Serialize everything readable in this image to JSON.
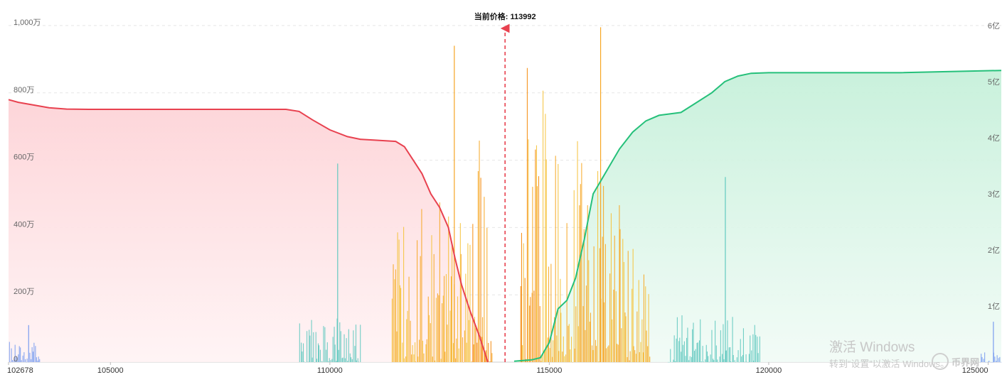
{
  "chart_data": {
    "type": "area",
    "title": "",
    "current_price_label": "当前价格: 113992",
    "current_price": 113992,
    "x_range": [
      102678,
      125300
    ],
    "x_ticks": [
      {
        "value": 102678,
        "label": "102678"
      },
      {
        "value": 105000,
        "label": "105000"
      },
      {
        "value": 110000,
        "label": "110000"
      },
      {
        "value": 115000,
        "label": "115000"
      },
      {
        "value": 120000,
        "label": "120000"
      },
      {
        "value": 125000,
        "label": "125000"
      }
    ],
    "y_left": {
      "range": [
        0,
        10000000
      ],
      "ticks": [
        {
          "value": 0,
          "label": "0"
        },
        {
          "value": 2000000,
          "label": "200万"
        },
        {
          "value": 4000000,
          "label": "400万"
        },
        {
          "value": 6000000,
          "label": "600万"
        },
        {
          "value": 8000000,
          "label": "800万"
        },
        {
          "value": 10000000,
          "label": "1,000万"
        }
      ]
    },
    "y_right": {
      "range": [
        0,
        600000000
      ],
      "ticks": [
        {
          "value": 100000000,
          "label": "1亿"
        },
        {
          "value": 200000000,
          "label": "2亿"
        },
        {
          "value": 300000000,
          "label": "3亿"
        },
        {
          "value": 400000000,
          "label": "4亿"
        },
        {
          "value": 500000000,
          "label": "5亿"
        },
        {
          "value": 600000000,
          "label": "6亿"
        }
      ]
    },
    "grid": true,
    "series": [
      {
        "role": "bid-cumulative",
        "axis": "left",
        "color": "#e8414f",
        "fill": "#fdd6da",
        "points": [
          [
            102678,
            7800000
          ],
          [
            102900,
            7720000
          ],
          [
            103200,
            7650000
          ],
          [
            103600,
            7560000
          ],
          [
            104000,
            7520000
          ],
          [
            104500,
            7510000
          ],
          [
            106000,
            7510000
          ],
          [
            108000,
            7510000
          ],
          [
            109000,
            7510000
          ],
          [
            109300,
            7450000
          ],
          [
            109600,
            7200000
          ],
          [
            110000,
            6900000
          ],
          [
            110400,
            6700000
          ],
          [
            110700,
            6620000
          ],
          [
            111000,
            6600000
          ],
          [
            111500,
            6560000
          ],
          [
            111700,
            6400000
          ],
          [
            111900,
            6000000
          ],
          [
            112100,
            5600000
          ],
          [
            112300,
            5000000
          ],
          [
            112500,
            4600000
          ],
          [
            112700,
            4000000
          ],
          [
            112850,
            3100000
          ],
          [
            113000,
            2300000
          ],
          [
            113200,
            1500000
          ],
          [
            113400,
            800000
          ],
          [
            113600,
            0
          ]
        ]
      },
      {
        "role": "ask-cumulative",
        "axis": "right",
        "color": "#25c07a",
        "fill": "#c8f1dd",
        "points": [
          [
            114200,
            1500000
          ],
          [
            114600,
            4000000
          ],
          [
            114800,
            8000000
          ],
          [
            115000,
            35000000
          ],
          [
            115200,
            95000000
          ],
          [
            115400,
            110000000
          ],
          [
            115600,
            150000000
          ],
          [
            115800,
            220000000
          ],
          [
            116000,
            300000000
          ],
          [
            116300,
            340000000
          ],
          [
            116600,
            380000000
          ],
          [
            116900,
            410000000
          ],
          [
            117200,
            430000000
          ],
          [
            117500,
            440000000
          ],
          [
            118000,
            445000000
          ],
          [
            118300,
            460000000
          ],
          [
            118700,
            480000000
          ],
          [
            119000,
            500000000
          ],
          [
            119300,
            510000000
          ],
          [
            119600,
            515000000
          ],
          [
            120000,
            516000000
          ],
          [
            123000,
            516000000
          ],
          [
            125300,
            520000000
          ]
        ]
      }
    ],
    "bar_groups": [
      {
        "role": "far-bids",
        "color": "#7b9df0",
        "x_range": [
          102680,
          103400
        ],
        "max": 45000000,
        "seed": 11,
        "peak": 1100000,
        "axis": "right"
      },
      {
        "role": "near-bids-teal",
        "color": "#62c9c0",
        "x_range": [
          109300,
          110700
        ],
        "max": 80000000,
        "seed": 23,
        "peak": 5900000,
        "axis": "right"
      },
      {
        "role": "bids-orange",
        "color": "#f6a623",
        "x_range": [
          111400,
          113700
        ],
        "max": 480000000,
        "seed": 37,
        "peak": 9400000,
        "axis": "right"
      },
      {
        "role": "asks-orange",
        "color": "#f6a623",
        "x_range": [
          114300,
          117300
        ],
        "max": 590000000,
        "seed": 53,
        "peak": 9950000,
        "axis": "right"
      },
      {
        "role": "far-asks-teal",
        "color": "#62c9c0",
        "x_range": [
          117700,
          119800
        ],
        "max": 85000000,
        "seed": 71,
        "peak": 5500000,
        "axis": "right"
      },
      {
        "role": "extreme-asks",
        "color": "#7b9df0",
        "x_range": [
          124800,
          125300
        ],
        "max": 20000000,
        "seed": 89,
        "peak": 1200000,
        "axis": "right"
      }
    ]
  },
  "watermark": {
    "title": "激活 Windows",
    "subtitle": "转到“设置”以激活 Windows。",
    "brand": "币界网"
  }
}
